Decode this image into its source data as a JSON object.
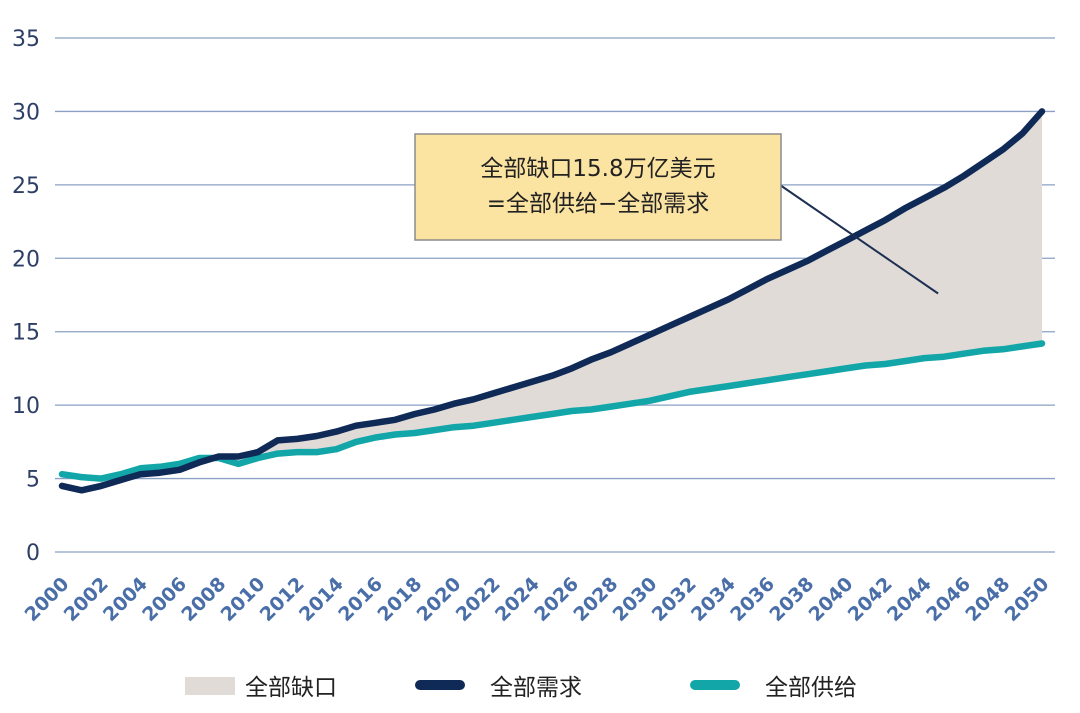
{
  "chart_data": {
    "type": "area",
    "title": "",
    "xlabel": "",
    "ylabel": "",
    "ylim": [
      0,
      35
    ],
    "yticks": [
      0,
      5,
      10,
      15,
      20,
      25,
      30,
      35
    ],
    "grid": true,
    "legend_position": "bottom",
    "x": [
      2000,
      2001,
      2002,
      2003,
      2004,
      2005,
      2006,
      2007,
      2008,
      2009,
      2010,
      2011,
      2012,
      2013,
      2014,
      2015,
      2016,
      2017,
      2018,
      2019,
      2020,
      2021,
      2022,
      2023,
      2024,
      2025,
      2026,
      2027,
      2028,
      2029,
      2030,
      2031,
      2032,
      2033,
      2034,
      2035,
      2036,
      2037,
      2038,
      2039,
      2040,
      2041,
      2042,
      2043,
      2044,
      2045,
      2046,
      2047,
      2048,
      2049,
      2050
    ],
    "xtick_labels": [
      "2000",
      "2002",
      "2004",
      "2006",
      "2008",
      "2010",
      "2012",
      "2014",
      "2016",
      "2018",
      "2020",
      "2022",
      "2024",
      "2026",
      "2028",
      "2030",
      "2032",
      "2034",
      "2036",
      "2038",
      "2040",
      "2042",
      "2044",
      "2046",
      "2048",
      "2050"
    ],
    "series": [
      {
        "name": "全部需求",
        "color": "#0f2a57",
        "values": [
          4.5,
          4.2,
          4.5,
          4.9,
          5.3,
          5.4,
          5.6,
          6.1,
          6.5,
          6.5,
          6.8,
          7.6,
          7.7,
          7.9,
          8.2,
          8.6,
          8.8,
          9.0,
          9.4,
          9.7,
          10.1,
          10.4,
          10.8,
          11.2,
          11.6,
          12.0,
          12.5,
          13.1,
          13.6,
          14.2,
          14.8,
          15.4,
          16.0,
          16.6,
          17.2,
          17.9,
          18.6,
          19.2,
          19.8,
          20.5,
          21.2,
          21.9,
          22.6,
          23.4,
          24.1,
          24.8,
          25.6,
          26.5,
          27.4,
          28.5,
          30.0
        ]
      },
      {
        "name": "全部供给",
        "color": "#13a6a9",
        "values": [
          5.3,
          5.1,
          5.0,
          5.3,
          5.7,
          5.8,
          6.0,
          6.4,
          6.4,
          6.0,
          6.4,
          6.7,
          6.8,
          6.8,
          7.0,
          7.5,
          7.8,
          8.0,
          8.1,
          8.3,
          8.5,
          8.6,
          8.8,
          9.0,
          9.2,
          9.4,
          9.6,
          9.7,
          9.9,
          10.1,
          10.3,
          10.6,
          10.9,
          11.1,
          11.3,
          11.5,
          11.7,
          11.9,
          12.1,
          12.3,
          12.5,
          12.7,
          12.8,
          13.0,
          13.2,
          13.3,
          13.5,
          13.7,
          13.8,
          14.0,
          14.2
        ]
      }
    ],
    "gap": {
      "name": "全部缺口",
      "color": "#e0dbd7"
    },
    "annotation": {
      "line1": "全部缺口15.8万亿美元",
      "line2": "=全部供给−全部需求",
      "arrow_to": {
        "x": 2044.7,
        "y": 17.6
      }
    }
  },
  "legend": {
    "gap_label": "全部缺口",
    "demand_label": "全部需求",
    "supply_label": "全部供给"
  }
}
